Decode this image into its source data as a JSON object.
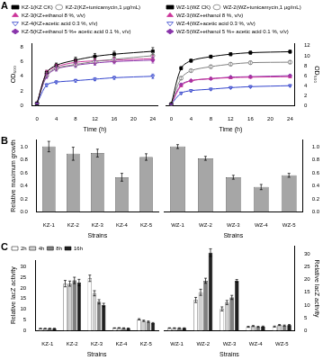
{
  "chart_data": [
    {
      "type": "line",
      "title": "A",
      "x_label": "Time (h)",
      "y_label": "OD₆₀₀",
      "x": [
        0,
        2,
        4,
        8,
        12,
        16,
        24
      ],
      "xlim": [
        -1,
        25
      ],
      "xticks": [
        0,
        4,
        8,
        12,
        16,
        20,
        24
      ],
      "ylim": [
        0,
        8.5
      ],
      "yticks": [
        0,
        2,
        4,
        6,
        8
      ],
      "legend": "top",
      "grid": false,
      "series": [
        {
          "name": "KZ-1(KZ CK)",
          "color": "#000000",
          "marker": "square",
          "values": [
            0.3,
            4.5,
            5.5,
            6.2,
            6.7,
            7.0,
            7.4
          ],
          "errors": [
            0.05,
            0.3,
            0.3,
            0.4,
            0.4,
            0.4,
            0.5
          ]
        },
        {
          "name": "KZ-2(KZ+tunicamycin,1 μg/mL)",
          "color": "#808080",
          "marker": "circle_open",
          "values": [
            0.3,
            4.2,
            5.1,
            5.6,
            6.0,
            6.3,
            6.8
          ],
          "errors": [
            0.05,
            0.3,
            0.3,
            0.3,
            0.3,
            0.4,
            0.4
          ]
        },
        {
          "name": "KZ-3(KZ+ethanol 8 %, v/v)",
          "color": "#cc3399",
          "marker": "triangle",
          "values": [
            0.3,
            4.5,
            5.3,
            5.9,
            6.1,
            6.2,
            6.4
          ],
          "errors": [
            0.05,
            0.3,
            0.3,
            0.3,
            0.3,
            0.3,
            0.4
          ]
        },
        {
          "name": "KZ-4(KZ+acetic acid 0.3 %, v/v)",
          "color": "#3344cc",
          "marker": "triangle_down_open",
          "values": [
            0.3,
            2.8,
            3.2,
            3.4,
            3.6,
            3.8,
            4.0
          ],
          "errors": [
            0.05,
            0.2,
            0.2,
            0.2,
            0.2,
            0.2,
            0.3
          ]
        },
        {
          "name": "KZ-5(KZ+ethanol 5 %+ acetic acid 0.1 %, v/v)",
          "color": "#8833aa",
          "marker": "diamond",
          "values": [
            0.3,
            4.0,
            5.0,
            5.5,
            5.8,
            6.0,
            6.2
          ],
          "errors": [
            0.05,
            0.3,
            0.3,
            0.3,
            0.3,
            0.3,
            0.4
          ]
        }
      ]
    },
    {
      "type": "line",
      "x_label": "Time (h)",
      "y_label": "OD₆₀₀",
      "x": [
        0,
        2,
        4,
        8,
        12,
        16,
        24
      ],
      "xlim": [
        -1,
        25
      ],
      "xticks": [
        0,
        4,
        8,
        12,
        16,
        20,
        24
      ],
      "ylim": [
        0,
        12.5
      ],
      "yticks": [
        0,
        2,
        4,
        6,
        8,
        10,
        12
      ],
      "legend": "top",
      "grid": false,
      "series": [
        {
          "name": "WZ-1(WZ CK)",
          "color": "#000000",
          "marker": "square",
          "values": [
            0.3,
            7.5,
            9.0,
            9.8,
            10.3,
            10.6,
            10.8
          ],
          "errors": [
            0.05,
            0.3,
            0.3,
            0.3,
            0.3,
            0.3,
            0.3
          ]
        },
        {
          "name": "WZ-2(WZ+tunicamycin,1 μg/mL)",
          "color": "#808080",
          "marker": "circle_open",
          "values": [
            0.3,
            5.5,
            7.0,
            7.8,
            8.3,
            8.6,
            8.7
          ],
          "errors": [
            0.05,
            0.3,
            0.3,
            0.3,
            0.3,
            0.3,
            0.3
          ]
        },
        {
          "name": "WZ-3(WZ+ethanol 8 %, v/v)",
          "color": "#cc3399",
          "marker": "triangle",
          "values": [
            0.3,
            4.0,
            5.0,
            5.4,
            5.6,
            5.7,
            5.8
          ],
          "errors": [
            0.05,
            0.2,
            0.2,
            0.2,
            0.2,
            0.2,
            0.2
          ]
        },
        {
          "name": "WZ-4(WZ+acetic acid 0.3 %, v/v)",
          "color": "#3344cc",
          "marker": "triangle_down_open",
          "values": [
            0.3,
            2.5,
            3.0,
            3.3,
            3.6,
            3.8,
            4.0
          ],
          "errors": [
            0.05,
            0.2,
            0.2,
            0.2,
            0.2,
            0.2,
            0.2
          ]
        },
        {
          "name": "WZ-5(WZ+ethanol 5 %+ acetic acid 0.1 %, v/v)",
          "color": "#8833aa",
          "marker": "diamond",
          "values": [
            0.3,
            4.2,
            5.0,
            5.4,
            5.7,
            5.8,
            6.0
          ],
          "errors": [
            0.05,
            0.2,
            0.2,
            0.2,
            0.2,
            0.2,
            0.2
          ]
        }
      ]
    },
    {
      "type": "bar",
      "title": "B",
      "x_label": "Strains",
      "y_label": "Relative maximum growth",
      "categories": [
        "KZ-1",
        "KZ-2",
        "KZ-3",
        "KZ-4",
        "KZ-5"
      ],
      "color": "#a6a6a6",
      "values": [
        1.0,
        0.89,
        0.9,
        0.53,
        0.84
      ],
      "errors": [
        0.08,
        0.1,
        0.06,
        0.06,
        0.05
      ],
      "ylim": [
        0,
        1.1
      ],
      "grid": false,
      "yticks": [
        {
          "value": 0,
          "label": "0.0"
        },
        {
          "value": 0.2,
          "label": "0.2"
        },
        {
          "value": 0.4,
          "label": "0.4"
        },
        {
          "value": 0.6,
          "label": "0.6"
        },
        {
          "value": 0.8,
          "label": "0.8"
        },
        {
          "value": 1,
          "label": "1.0"
        }
      ]
    },
    {
      "type": "bar",
      "x_label": "Strains",
      "categories": [
        "WZ-1",
        "WZ-2",
        "WZ-3",
        "WZ-4",
        "WZ-5"
      ],
      "color": "#a6a6a6",
      "values": [
        1.0,
        0.82,
        0.53,
        0.38,
        0.56
      ],
      "errors": [
        0.03,
        0.03,
        0.03,
        0.04,
        0.03
      ],
      "ylim": [
        0,
        1.1
      ],
      "grid": false,
      "yticks": [
        {
          "value": 0,
          "label": "0.0"
        },
        {
          "value": 0.2,
          "label": "0.2"
        },
        {
          "value": 0.4,
          "label": "0.4"
        },
        {
          "value": 0.6,
          "label": "0.6"
        },
        {
          "value": 0.8,
          "label": "0.8"
        },
        {
          "value": 1,
          "label": "1.0"
        }
      ]
    },
    {
      "type": "bar",
      "title": "C",
      "x_label": "Strains",
      "y_label": "Relative lacZ activity",
      "categories": [
        "KZ-1",
        "KZ-2",
        "KZ-3",
        "KZ-4",
        "KZ-5"
      ],
      "ylim": [
        0,
        33
      ],
      "yticks": [
        0,
        5,
        10,
        15,
        20,
        25,
        30
      ],
      "legend": "top",
      "grid": false,
      "series": [
        {
          "name": "2h",
          "color": "#ffffff",
          "values": [
            1.0,
            22.0,
            24.5,
            1.2,
            5.3
          ],
          "errors": [
            0.1,
            1.5,
            1.5,
            0.1,
            0.3
          ]
        },
        {
          "name": "4h",
          "color": "#d0d0d0",
          "values": [
            1.0,
            22.0,
            17.5,
            1.3,
            4.6
          ],
          "errors": [
            0.1,
            1.2,
            1.2,
            0.1,
            0.3
          ]
        },
        {
          "name": "8h",
          "color": "#808080",
          "values": [
            1.0,
            23.5,
            13.5,
            1.2,
            4.2
          ],
          "errors": [
            0.1,
            1.5,
            1.0,
            0.1,
            0.3
          ]
        },
        {
          "name": "16h",
          "color": "#202020",
          "values": [
            1.0,
            22.5,
            12.0,
            1.1,
            3.5
          ],
          "errors": [
            0.1,
            1.5,
            0.8,
            0.1,
            0.3
          ]
        }
      ]
    },
    {
      "type": "bar",
      "x_label": "Strains",
      "y_label": "Relative lacZ activity",
      "categories": [
        "WZ-1",
        "WZ-2",
        "WZ-3",
        "WZ-4",
        "WZ-5"
      ],
      "ylim": [
        0,
        33
      ],
      "yticks": [
        0,
        5,
        10,
        15,
        20,
        25,
        30
      ],
      "grid": false,
      "series": [
        {
          "name": "2h",
          "color": "#ffffff",
          "values": [
            1.0,
            12.0,
            8.5,
            1.5,
            1.6
          ],
          "errors": [
            0.1,
            1.0,
            0.8,
            0.2,
            0.2
          ]
        },
        {
          "name": "4h",
          "color": "#d0d0d0",
          "values": [
            1.0,
            15.0,
            11.0,
            1.8,
            2.2
          ],
          "errors": [
            0.1,
            1.2,
            0.8,
            0.2,
            0.2
          ]
        },
        {
          "name": "8h",
          "color": "#808080",
          "values": [
            1.0,
            19.5,
            13.0,
            1.5,
            2.0
          ],
          "errors": [
            0.1,
            1.0,
            0.8,
            0.2,
            0.2
          ]
        },
        {
          "name": "16h",
          "color": "#202020",
          "values": [
            1.0,
            30.5,
            19.5,
            1.6,
            2.2
          ],
          "errors": [
            0.1,
            1.5,
            0.5,
            0.2,
            0.2
          ]
        }
      ]
    }
  ]
}
